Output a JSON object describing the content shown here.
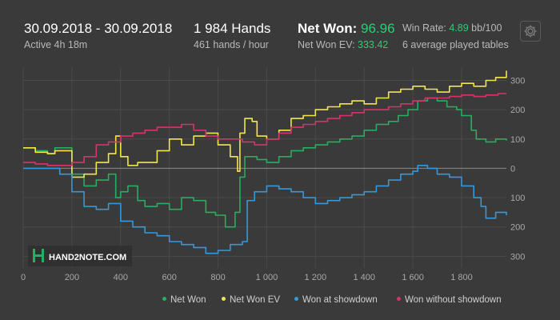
{
  "header": {
    "date_range": "30.09.2018 - 30.09.2018",
    "active": "Active 4h 18m",
    "hands": "1 984 Hands",
    "hands_per_hour": "461 hands / hour",
    "net_won_label": "Net Won: ",
    "net_won_value": "96.96",
    "net_won_ev_label": "Net Won  EV: ",
    "net_won_ev_value": "333.42",
    "win_rate_label": "Win Rate: ",
    "win_rate_value": "4.89",
    "win_rate_unit": " bb/100",
    "tables": "6 average played tables"
  },
  "icons": {
    "settings": "gear-icon",
    "logo": "hand2note-logo"
  },
  "logo": {
    "text": "HAND2NOTE.COM"
  },
  "colors": {
    "background": "#3a3a3a",
    "net_won": "#27ae60",
    "net_won_ev": "#f1e74c",
    "won_at_showdown": "#3498db",
    "won_without_showdown": "#d6336c"
  },
  "chart_data": {
    "type": "line",
    "x_ticks": [
      "0",
      "200",
      "400",
      "600",
      "800",
      "1 000",
      "1 200",
      "1 400",
      "1 600",
      "1 800"
    ],
    "y_tick_values": [
      300,
      200,
      100,
      0,
      -100,
      -200,
      -300
    ],
    "y_ticks": [
      "300",
      "200",
      "100",
      "0",
      "100",
      "200",
      "300"
    ],
    "xlim": [
      0,
      1984
    ],
    "ylim": [
      -340,
      345
    ],
    "grid": true,
    "legend_position": "bottom-right",
    "series": [
      {
        "name": "Net Won",
        "color": "#27ae60",
        "x": [
          0,
          50,
          100,
          130,
          200,
          250,
          300,
          350,
          380,
          400,
          430,
          470,
          500,
          550,
          600,
          650,
          700,
          750,
          790,
          830,
          870,
          890,
          910,
          960,
          1000,
          1050,
          1100,
          1150,
          1200,
          1250,
          1300,
          1350,
          1400,
          1450,
          1500,
          1540,
          1580,
          1620,
          1660,
          1700,
          1740,
          1780,
          1800,
          1840,
          1860,
          1900,
          1940,
          1984
        ],
        "y": [
          70,
          60,
          50,
          70,
          -20,
          -60,
          -40,
          -20,
          -100,
          -80,
          -60,
          -110,
          -130,
          -120,
          -140,
          -100,
          -110,
          -150,
          -160,
          -200,
          -150,
          -30,
          40,
          30,
          20,
          40,
          60,
          70,
          80,
          90,
          100,
          110,
          130,
          150,
          160,
          180,
          200,
          230,
          240,
          230,
          210,
          200,
          180,
          130,
          100,
          90,
          100,
          95
        ]
      },
      {
        "name": "Net Won  EV",
        "color": "#f1e74c",
        "x": [
          0,
          50,
          100,
          130,
          200,
          250,
          300,
          350,
          380,
          400,
          430,
          470,
          500,
          550,
          600,
          650,
          700,
          750,
          800,
          850,
          880,
          890,
          910,
          940,
          960,
          1000,
          1050,
          1100,
          1150,
          1200,
          1250,
          1300,
          1350,
          1400,
          1450,
          1500,
          1550,
          1600,
          1650,
          1700,
          1750,
          1800,
          1850,
          1900,
          1940,
          1984
        ],
        "y": [
          70,
          55,
          50,
          60,
          -30,
          -20,
          20,
          50,
          110,
          40,
          10,
          20,
          20,
          60,
          100,
          80,
          110,
          120,
          80,
          40,
          -10,
          120,
          170,
          160,
          110,
          100,
          130,
          170,
          180,
          200,
          210,
          220,
          230,
          220,
          240,
          260,
          270,
          280,
          270,
          260,
          280,
          290,
          280,
          300,
          310,
          333
        ]
      },
      {
        "name": "Won at showdown",
        "color": "#3498db",
        "x": [
          0,
          50,
          100,
          150,
          200,
          250,
          300,
          350,
          400,
          450,
          500,
          550,
          600,
          650,
          700,
          750,
          800,
          850,
          900,
          920,
          950,
          1000,
          1050,
          1100,
          1150,
          1200,
          1250,
          1300,
          1350,
          1400,
          1450,
          1500,
          1550,
          1600,
          1620,
          1660,
          1700,
          1750,
          1800,
          1850,
          1880,
          1900,
          1940,
          1984
        ],
        "y": [
          0,
          0,
          0,
          -20,
          -80,
          -130,
          -140,
          -120,
          -180,
          -200,
          -220,
          -230,
          -250,
          -260,
          -270,
          -290,
          -280,
          -260,
          -250,
          -110,
          -80,
          -60,
          -70,
          -80,
          -100,
          -120,
          -110,
          -100,
          -90,
          -80,
          -60,
          -40,
          -20,
          -10,
          10,
          0,
          -20,
          -30,
          -60,
          -100,
          -130,
          -170,
          -150,
          -160
        ]
      },
      {
        "name": "Won without showdown",
        "color": "#d6336c",
        "x": [
          0,
          50,
          100,
          150,
          200,
          250,
          300,
          350,
          400,
          450,
          500,
          550,
          600,
          650,
          700,
          750,
          800,
          850,
          900,
          950,
          1000,
          1050,
          1100,
          1150,
          1200,
          1250,
          1300,
          1350,
          1400,
          1450,
          1500,
          1550,
          1600,
          1650,
          1700,
          1750,
          1800,
          1850,
          1900,
          1950,
          1984
        ],
        "y": [
          20,
          15,
          10,
          10,
          20,
          40,
          80,
          90,
          110,
          120,
          130,
          140,
          140,
          150,
          130,
          110,
          100,
          100,
          90,
          80,
          100,
          120,
          140,
          150,
          160,
          170,
          180,
          190,
          200,
          200,
          210,
          220,
          230,
          240,
          240,
          245,
          250,
          245,
          250,
          255,
          255
        ]
      }
    ]
  }
}
